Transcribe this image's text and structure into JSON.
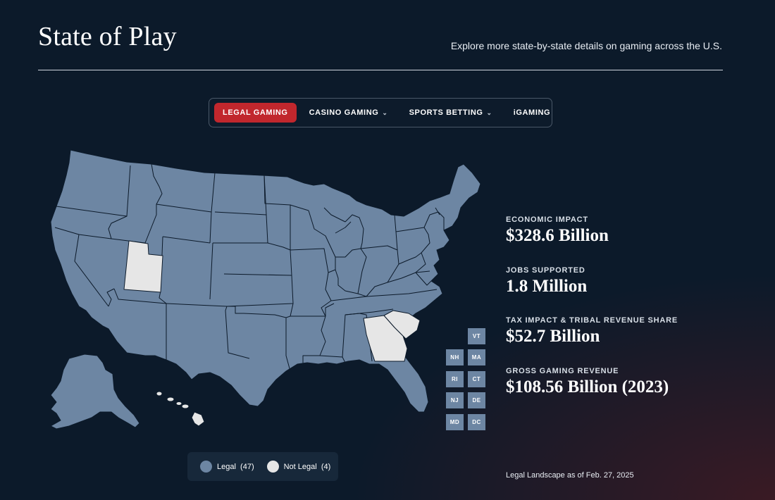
{
  "header": {
    "title": "State of Play",
    "tagline": "Explore more state-by-state details on gaming across the U.S."
  },
  "tabs": [
    {
      "label": "LEGAL GAMING",
      "active": true,
      "dropdown": false
    },
    {
      "label": "CASINO GAMING",
      "active": false,
      "dropdown": true
    },
    {
      "label": "SPORTS BETTING",
      "active": false,
      "dropdown": true
    },
    {
      "label": "iGAMING",
      "active": false,
      "dropdown": false
    }
  ],
  "colors": {
    "legal": "#6d86a3",
    "not_legal": "#e6e6e6",
    "accent": "#c1272d",
    "background": "#0c1a2a"
  },
  "map": {
    "not_legal_states": [
      "UT",
      "GA",
      "SC",
      "HI"
    ],
    "small_states": [
      "VT",
      "NH",
      "MA",
      "RI",
      "CT",
      "NJ",
      "DE",
      "MD",
      "DC"
    ]
  },
  "stats": [
    {
      "label": "ECONOMIC IMPACT",
      "value": "$328.6 Billion"
    },
    {
      "label": "JOBS SUPPORTED",
      "value": "1.8 Million"
    },
    {
      "label": "TAX IMPACT & TRIBAL REVENUE SHARE",
      "value": "$52.7 Billion"
    },
    {
      "label": "GROSS GAMING REVENUE",
      "value": "$108.56 Billion (2023)"
    }
  ],
  "legend": {
    "legal_label": "Legal",
    "legal_count": "(47)",
    "not_legal_label": "Not Legal",
    "not_legal_count": "(4)"
  },
  "footnote": "Legal Landscape as of Feb. 27, 2025"
}
